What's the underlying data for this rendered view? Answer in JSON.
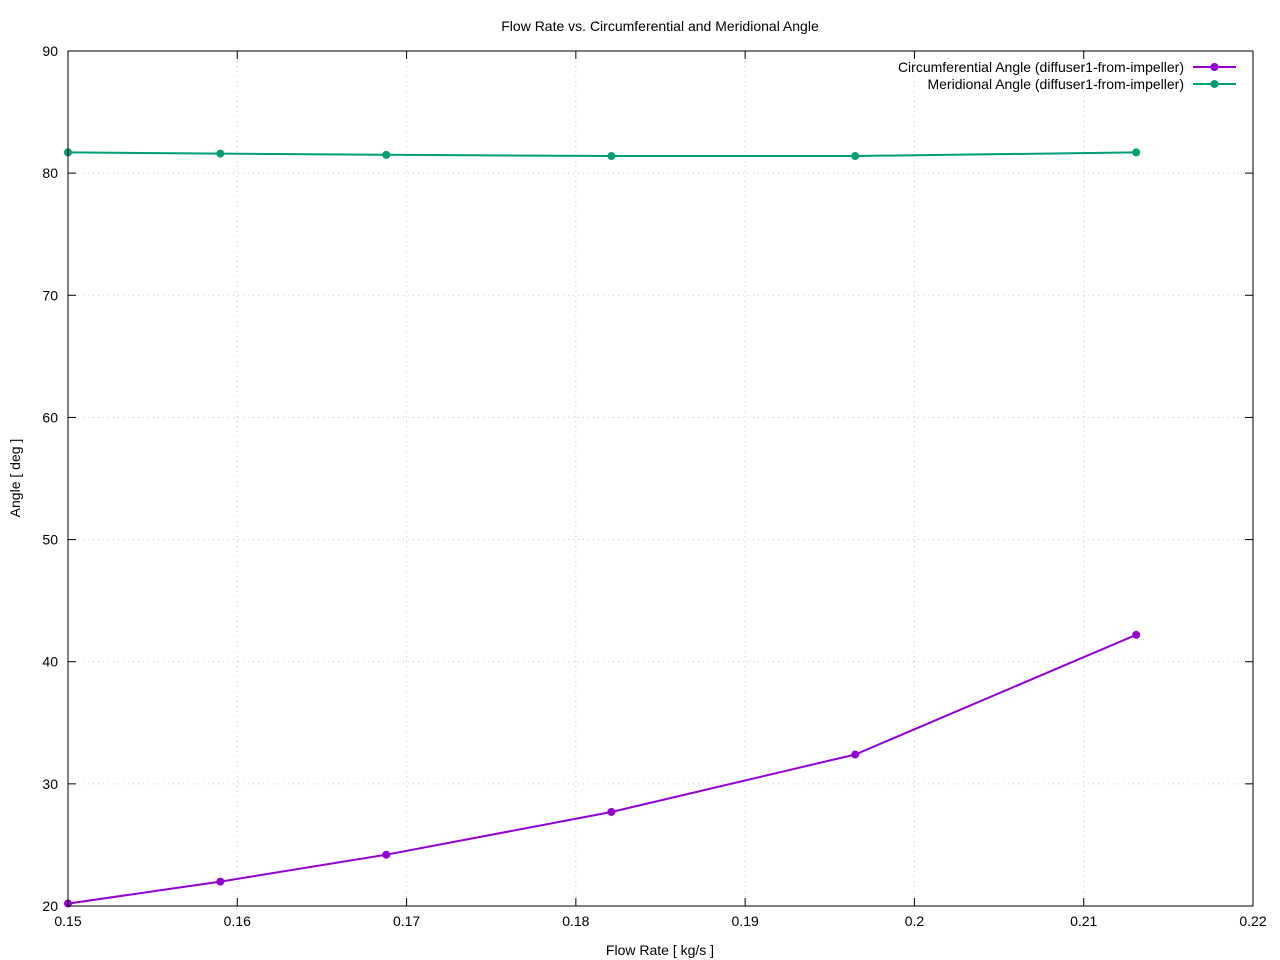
{
  "chart_data": {
    "type": "line",
    "title": "Flow Rate vs. Circumferential and Meridional Angle",
    "xlabel": "Flow Rate [ kg/s ]",
    "ylabel": "Angle [ deg ]",
    "xlim": [
      0.15,
      0.22
    ],
    "ylim": [
      20,
      90
    ],
    "grid": true,
    "legend_position": "top-right",
    "x_ticks": [
      {
        "value": 0.15,
        "label": "0.15"
      },
      {
        "value": 0.16,
        "label": "0.16"
      },
      {
        "value": 0.17,
        "label": "0.17"
      },
      {
        "value": 0.18,
        "label": "0.18"
      },
      {
        "value": 0.19,
        "label": "0.19"
      },
      {
        "value": 0.2,
        "label": "0.2"
      },
      {
        "value": 0.21,
        "label": "0.21"
      },
      {
        "value": 0.22,
        "label": "0.22"
      }
    ],
    "y_ticks": [
      {
        "value": 20,
        "label": "20"
      },
      {
        "value": 30,
        "label": "30"
      },
      {
        "value": 40,
        "label": "40"
      },
      {
        "value": 50,
        "label": "50"
      },
      {
        "value": 60,
        "label": "60"
      },
      {
        "value": 70,
        "label": "70"
      },
      {
        "value": 80,
        "label": "80"
      },
      {
        "value": 90,
        "label": "90"
      }
    ],
    "series": [
      {
        "name": "Circumferential Angle (diffuser1-from-impeller)",
        "color": "#9400d3",
        "x": [
          0.15,
          0.159,
          0.1688,
          0.1821,
          0.1965,
          0.2131
        ],
        "y": [
          20.2,
          22.0,
          24.2,
          27.7,
          32.4,
          42.2
        ]
      },
      {
        "name": "Meridional Angle (diffuser1-from-impeller)",
        "color": "#009e73",
        "x": [
          0.15,
          0.159,
          0.1688,
          0.1821,
          0.1965,
          0.2131
        ],
        "y": [
          81.7,
          81.6,
          81.5,
          81.4,
          81.4,
          81.7
        ]
      }
    ]
  }
}
